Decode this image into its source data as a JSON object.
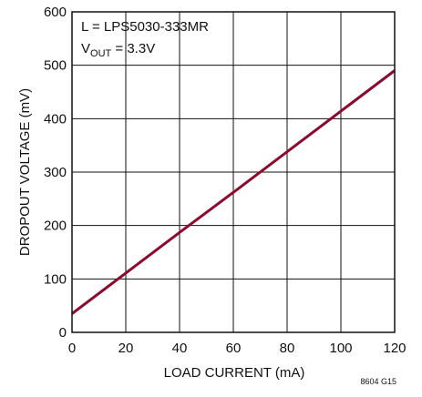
{
  "chart_data": {
    "type": "line",
    "title": "",
    "xlabel": "LOAD CURRENT (mA)",
    "ylabel": "DROPOUT VOLTAGE (mV)",
    "xlim": [
      0,
      120
    ],
    "ylim": [
      0,
      600
    ],
    "x_ticks": [
      0,
      20,
      40,
      60,
      80,
      100,
      120
    ],
    "y_ticks": [
      0,
      100,
      200,
      300,
      400,
      500,
      600
    ],
    "grid": true,
    "annotation": {
      "line1": "L = LPS5030-333MR",
      "line2_main": "V",
      "line2_sub": "OUT",
      "line2_rest": " = 3.3V"
    },
    "figure_id": "8604 G15",
    "series": [
      {
        "color": "#8b0a2e",
        "x": [
          0,
          20,
          40,
          60,
          80,
          100,
          120
        ],
        "y": [
          35,
          111,
          187,
          262,
          338,
          414,
          490
        ]
      }
    ]
  }
}
